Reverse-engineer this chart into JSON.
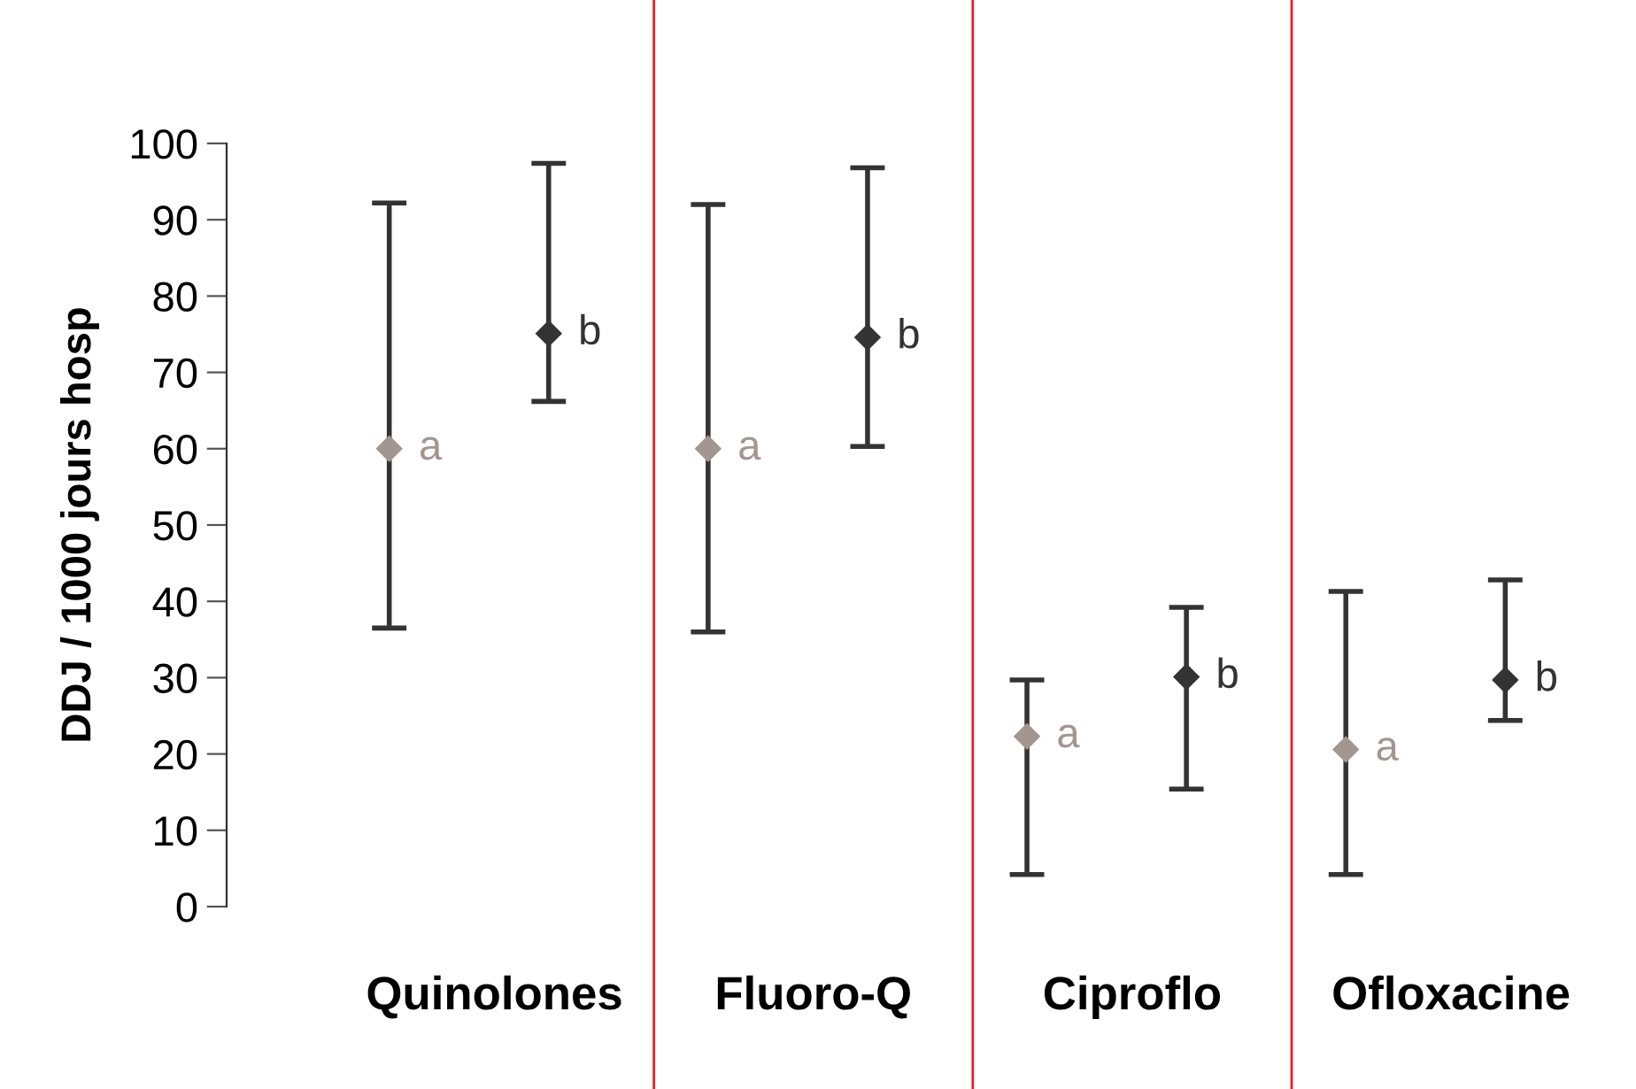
{
  "chart_data": {
    "type": "scatter",
    "ylabel": "DDJ / 1000 jours hosp",
    "categories": [
      "Quinolones",
      "Fluoro-Q",
      "Ciproflo",
      "Ofloxacine"
    ],
    "series": [
      {
        "name": "a",
        "color": "#a39590",
        "values": [
          60,
          60,
          22.3,
          20.6
        ],
        "errors": [
          [
            36.5,
            92.2
          ],
          [
            36,
            92
          ],
          [
            4.2,
            29.7
          ],
          [
            4.2,
            41.3
          ]
        ]
      },
      {
        "name": "b",
        "color": "#333333",
        "values": [
          75.1,
          74.6,
          30.1,
          29.7
        ],
        "errors": [
          [
            66.2,
            97.4
          ],
          [
            60.3,
            96.8
          ],
          [
            15.4,
            39.2
          ],
          [
            24.4,
            42.8
          ]
        ]
      }
    ],
    "ylim": [
      0,
      100
    ],
    "yticks": [
      0,
      10,
      20,
      30,
      40,
      50,
      60,
      70,
      80,
      90,
      100
    ],
    "marker": "diamond",
    "grid": "x",
    "legend": false
  }
}
